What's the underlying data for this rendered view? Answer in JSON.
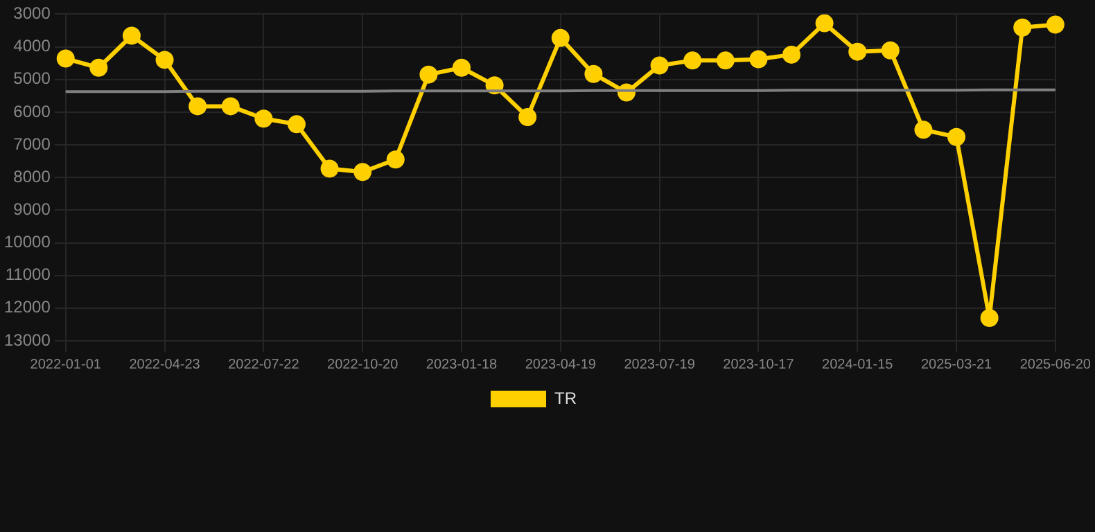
{
  "chart_data": {
    "type": "line",
    "categories": [
      "2022-01-01",
      null,
      null,
      "2022-04-23",
      null,
      null,
      "2022-07-22",
      null,
      null,
      "2022-10-20",
      null,
      null,
      "2023-01-18",
      null,
      null,
      "2023-04-19",
      null,
      null,
      "2023-07-19",
      null,
      null,
      "2023-10-17",
      null,
      null,
      "2024-01-15",
      null,
      null,
      "2025-03-21",
      null,
      null,
      "2025-06-20"
    ],
    "series": [
      {
        "name": "TR",
        "color": "#ffd000",
        "values": [
          4360,
          4640,
          3660,
          4400,
          5820,
          5820,
          6200,
          6370,
          7730,
          7830,
          7450,
          4850,
          4640,
          5180,
          6150,
          3730,
          4830,
          5400,
          4570,
          4420,
          4420,
          4380,
          4240,
          3280,
          4150,
          4110,
          6540,
          6760,
          12300,
          3410,
          3320
        ]
      },
      {
        "type": "line",
        "color": "#808080",
        "marker": "none",
        "values": [
          5370,
          5370,
          5370,
          5370,
          5360,
          5360,
          5360,
          5360,
          5360,
          5360,
          5350,
          5350,
          5350,
          5350,
          5350,
          5350,
          5340,
          5340,
          5340,
          5340,
          5340,
          5340,
          5330,
          5330,
          5330,
          5330,
          5330,
          5330,
          5320,
          5320,
          5320
        ]
      }
    ],
    "ylim": [
      13000,
      3000
    ],
    "yticks": [
      3000,
      4000,
      5000,
      6000,
      7000,
      8000,
      9000,
      10000,
      11000,
      12000,
      13000
    ],
    "grid": true,
    "legend": "bottom",
    "marker": "circle",
    "line_style": "solid"
  }
}
